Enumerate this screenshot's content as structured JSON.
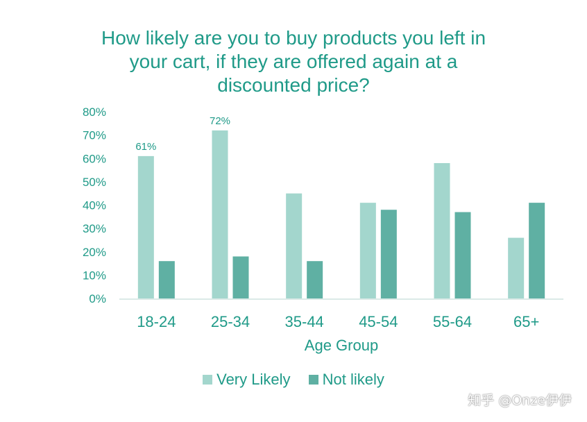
{
  "chart_data": {
    "type": "bar",
    "title": "How likely are you to buy products you left in your cart, if they are offered again at a discounted price?",
    "title_lines": [
      "How likely are you to buy products you left in",
      "your cart, if they are offered again at a",
      "discounted price?"
    ],
    "xlabel": "Age Group",
    "ylabel": "",
    "categories": [
      "18-24",
      "25-34",
      "35-44",
      "45-54",
      "55-64",
      "65+"
    ],
    "series": [
      {
        "name": "Very Likely",
        "color": "#a3d6cd",
        "values": [
          61,
          72,
          45,
          41,
          58,
          26
        ]
      },
      {
        "name": "Not likely",
        "color": "#5fb0a3",
        "values": [
          16,
          18,
          16,
          38,
          37,
          41
        ]
      }
    ],
    "data_labels": [
      {
        "series": 0,
        "index": 0,
        "text": "61%"
      },
      {
        "series": 0,
        "index": 1,
        "text": "72%"
      }
    ],
    "ylim": [
      0,
      80
    ],
    "yticks": [
      "0%",
      "10%",
      "20%",
      "30%",
      "40%",
      "50%",
      "60%",
      "70%",
      "80%"
    ],
    "grid": false,
    "legend_position": "bottom",
    "text_color": "#1f9a88"
  },
  "watermark": "知乎 @Onze伊伊"
}
